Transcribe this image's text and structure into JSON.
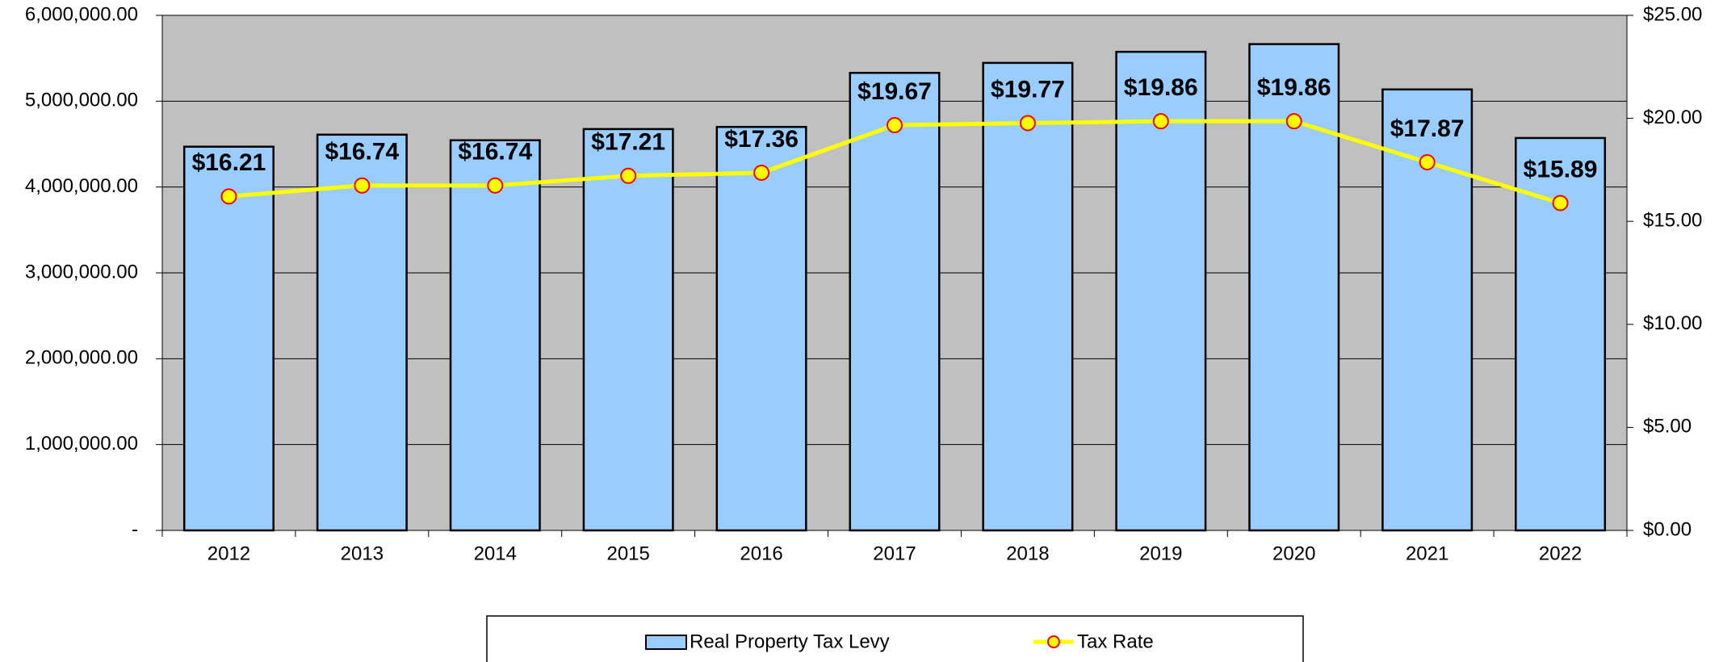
{
  "chart_data": {
    "type": "bar-line",
    "categories": [
      "2012",
      "2013",
      "2014",
      "2015",
      "2016",
      "2017",
      "2018",
      "2019",
      "2020",
      "2021",
      "2022"
    ],
    "series": [
      {
        "name": "Real Property Tax Levy",
        "color": "#99ccff",
        "type": "bar",
        "values": [
          4470000,
          4610000,
          4545000,
          4675000,
          4700000,
          5330000,
          5446000,
          5575000,
          5665000,
          5137000,
          4571000
        ]
      },
      {
        "name": "Tax Rate",
        "color": "#ffff00",
        "marker_color": "#ff0000",
        "type": "line",
        "axis": "y2",
        "values": [
          16.21,
          16.74,
          16.74,
          17.21,
          17.36,
          19.67,
          19.77,
          19.86,
          19.86,
          17.87,
          15.89
        ],
        "value_labels": [
          "$16.21",
          "$16.74",
          "$16.74",
          "$17.21",
          "$17.36",
          "$19.67",
          "$19.77",
          "$19.86",
          "$19.86",
          "$17.87",
          "$15.89"
        ]
      }
    ],
    "ylim": [
      0,
      6000000
    ],
    "yticks": [
      {
        "value": 0,
        "label": "-"
      },
      {
        "value": 1000000,
        "label": "1,000,000.00"
      },
      {
        "value": 2000000,
        "label": "2,000,000.00"
      },
      {
        "value": 3000000,
        "label": "3,000,000.00"
      },
      {
        "value": 4000000,
        "label": "4,000,000.00"
      },
      {
        "value": 5000000,
        "label": "5,000,000.00"
      },
      {
        "value": 6000000,
        "label": "6,000,000.00"
      }
    ],
    "y2lim": [
      0,
      25
    ],
    "y2ticks": [
      {
        "value": 0,
        "label": "$0.00"
      },
      {
        "value": 5,
        "label": "$5.00"
      },
      {
        "value": 10,
        "label": "$10.00"
      },
      {
        "value": 15,
        "label": "$15.00"
      },
      {
        "value": 20,
        "label": "$20.00"
      },
      {
        "value": 25,
        "label": "$25.00"
      }
    ],
    "grid": true,
    "plot_background": "#c0c0c0",
    "legend": "bottom"
  }
}
